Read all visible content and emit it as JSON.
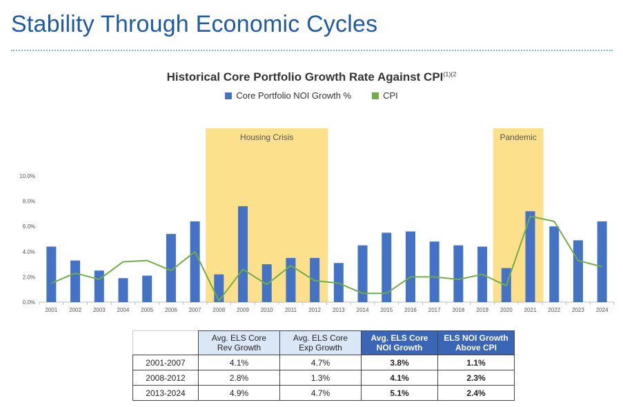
{
  "page": {
    "title": "Stability Through Economic Cycles"
  },
  "chart_data": {
    "type": "bar",
    "title": "Historical Core Portfolio Growth Rate Against CPI",
    "title_superscript": "(1)(2",
    "categories": [
      "2001",
      "2002",
      "2003",
      "2004",
      "2005",
      "2006",
      "2007",
      "2008",
      "2009",
      "2010",
      "2011",
      "2012",
      "2013",
      "2014",
      "2015",
      "2016",
      "2017",
      "2018",
      "2019",
      "2020",
      "2021",
      "2022",
      "2023",
      "2024"
    ],
    "series": [
      {
        "name": "Core Portfolio NOI Growth %",
        "type": "bar",
        "color": "#4472c4",
        "values": [
          4.4,
          3.3,
          2.5,
          1.9,
          2.1,
          5.4,
          6.4,
          2.2,
          7.6,
          3.0,
          3.5,
          3.5,
          3.1,
          4.5,
          5.5,
          5.6,
          4.8,
          4.5,
          4.4,
          2.7,
          7.2,
          6.0,
          4.9,
          6.4
        ]
      },
      {
        "name": "CPI",
        "type": "line",
        "color": "#70ad47",
        "values": [
          1.5,
          2.3,
          1.8,
          3.2,
          3.3,
          2.5,
          4.0,
          0.1,
          2.6,
          1.4,
          2.9,
          1.7,
          1.5,
          0.7,
          0.7,
          2.0,
          2.0,
          1.8,
          2.2,
          1.3,
          6.8,
          6.4,
          3.3,
          2.8
        ]
      }
    ],
    "y_ticks": [
      "0.0%",
      "2.0%",
      "4.0%",
      "6.0%",
      "8.0%",
      "10.0%"
    ],
    "ylim": [
      0,
      10
    ],
    "grid": false,
    "legend_position": "top-center",
    "shaded_periods": [
      {
        "label": "Housing Crisis",
        "start": "2008",
        "end": "2012",
        "color": "#fde08b"
      },
      {
        "label": "Pandemic",
        "start": "2020",
        "end": "2021",
        "color": "#fde08b"
      }
    ]
  },
  "table": {
    "headers": [
      "",
      "Avg. ELS Core\nRev Growth",
      "Avg. ELS Core\nExp Growth",
      "Avg. ELS Core\nNOI Growth",
      "ELS NOI Growth\nAbove CPI"
    ],
    "rows": [
      {
        "period": "2001-2007",
        "rev": "4.1%",
        "exp": "4.7%",
        "noi": "3.8%",
        "above": "1.1%"
      },
      {
        "period": "2008-2012",
        "rev": "2.8%",
        "exp": "1.3%",
        "noi": "4.1%",
        "above": "2.3%"
      },
      {
        "period": "2013-2024",
        "rev": "4.9%",
        "exp": "4.7%",
        "noi": "5.1%",
        "above": "2.4%"
      }
    ]
  }
}
